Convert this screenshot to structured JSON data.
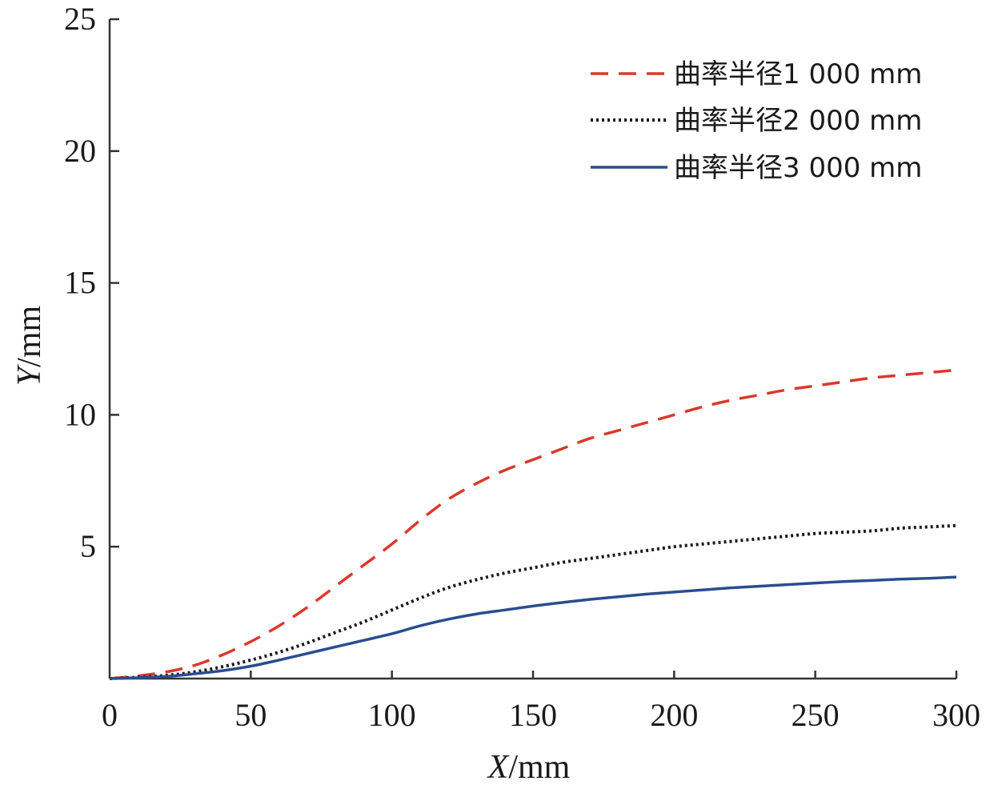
{
  "chart_data": {
    "type": "line",
    "xlabel_italic": "X",
    "xlabel_unit": "/mm",
    "ylabel_italic": "Y",
    "ylabel_unit": "/mm",
    "xlim": [
      0,
      300
    ],
    "ylim": [
      0,
      25
    ],
    "xticks": [
      0,
      50,
      100,
      150,
      200,
      250,
      300
    ],
    "xtick_labels": [
      "0",
      "50",
      "100",
      "150",
      "200",
      "250",
      "300"
    ],
    "yticks": [
      5,
      10,
      15,
      20,
      25
    ],
    "ytick_labels": [
      "5",
      "10",
      "15",
      "20",
      "25"
    ],
    "grid": false,
    "legend_position": "top-right",
    "x": [
      0,
      10,
      20,
      30,
      40,
      50,
      60,
      70,
      80,
      90,
      100,
      110,
      120,
      130,
      140,
      150,
      160,
      170,
      180,
      190,
      200,
      210,
      220,
      230,
      240,
      250,
      260,
      270,
      280,
      290,
      300
    ],
    "series": [
      {
        "name": "曲率半径1 000 mm",
        "style": "dashed",
        "color": "#d93a2b",
        "values": [
          0.0,
          0.1,
          0.25,
          0.5,
          0.9,
          1.4,
          2.0,
          2.7,
          3.5,
          4.3,
          5.1,
          6.0,
          6.8,
          7.4,
          7.9,
          8.3,
          8.7,
          9.1,
          9.4,
          9.7,
          10.0,
          10.3,
          10.55,
          10.75,
          10.95,
          11.1,
          11.25,
          11.4,
          11.5,
          11.6,
          11.7
        ]
      },
      {
        "name": "曲率半径2 000 mm",
        "style": "dotted",
        "color": "#1a1a1a",
        "values": [
          0.0,
          0.05,
          0.12,
          0.25,
          0.45,
          0.7,
          1.0,
          1.35,
          1.75,
          2.15,
          2.6,
          3.05,
          3.45,
          3.75,
          4.0,
          4.2,
          4.4,
          4.55,
          4.7,
          4.85,
          5.0,
          5.1,
          5.2,
          5.3,
          5.4,
          5.5,
          5.55,
          5.6,
          5.7,
          5.75,
          5.8
        ]
      },
      {
        "name": "曲率半径3 000 mm",
        "style": "solid",
        "color": "#2a4d8f",
        "values": [
          0.0,
          0.03,
          0.08,
          0.18,
          0.3,
          0.47,
          0.7,
          0.95,
          1.2,
          1.45,
          1.7,
          2.0,
          2.25,
          2.45,
          2.6,
          2.75,
          2.88,
          3.0,
          3.1,
          3.2,
          3.28,
          3.36,
          3.44,
          3.5,
          3.56,
          3.62,
          3.68,
          3.72,
          3.77,
          3.8,
          3.85
        ]
      }
    ]
  }
}
